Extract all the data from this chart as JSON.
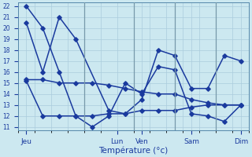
{
  "xlabel": "Température (°c)",
  "bg_color": "#cce8f0",
  "line_color": "#1a3a9e",
  "grid_color": "#aaccdd",
  "ylim": [
    11,
    22
  ],
  "yticks": [
    11,
    12,
    13,
    14,
    15,
    16,
    17,
    18,
    19,
    20,
    21,
    22
  ],
  "xlim": [
    -0.5,
    13.5
  ],
  "x_day_positions": [
    0,
    5.5,
    7,
    10,
    13
  ],
  "x_day_labels": [
    "Jeu",
    "Lun",
    "Ven",
    "Sam",
    "Dim"
  ],
  "vlines": [
    3.5,
    6.5,
    9,
    11.5
  ],
  "line1_x": [
    0,
    1,
    2,
    3,
    4,
    5,
    6,
    7,
    8,
    9,
    10,
    11,
    12,
    13
  ],
  "line1_y": [
    22.0,
    20.0,
    16.0,
    12.0,
    11.0,
    12.0,
    15.0,
    14.0,
    16.5,
    16.2,
    12.2,
    12.0,
    11.5,
    13.0
  ],
  "line2_x": [
    0,
    1,
    2,
    3,
    5,
    6,
    7,
    8,
    9,
    10,
    11,
    12,
    13
  ],
  "line2_y": [
    20.5,
    16.0,
    21.0,
    19.0,
    12.5,
    12.2,
    13.5,
    18.0,
    17.5,
    14.5,
    14.5,
    17.5,
    17.0
  ],
  "line3_x": [
    0,
    1,
    2,
    3,
    4,
    5,
    6,
    7,
    8,
    9,
    10,
    11,
    12,
    13
  ],
  "line3_y": [
    15.3,
    15.3,
    15.0,
    15.0,
    15.0,
    14.8,
    14.5,
    14.2,
    14.0,
    14.0,
    13.5,
    13.2,
    13.0,
    13.0
  ],
  "line4_x": [
    0,
    1,
    2,
    3,
    4,
    5,
    6,
    7,
    8,
    9,
    10,
    11,
    12,
    13
  ],
  "line4_y": [
    15.2,
    12.0,
    12.0,
    12.0,
    12.0,
    12.2,
    12.2,
    12.5,
    12.5,
    12.5,
    12.8,
    13.0,
    13.0,
    13.0
  ],
  "marker": "D",
  "markersize": 2.8,
  "linewidth": 1.1
}
